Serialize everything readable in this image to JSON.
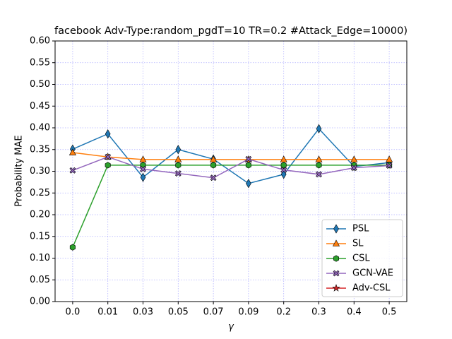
{
  "chart_data": {
    "type": "line",
    "title": "facebook Adv-Type:random_pgdT=10 TR=0.2 #Attack_Edge=10000)",
    "x_label": "γ",
    "y_label": "Probability MAE",
    "categories": [
      "0.0",
      "0.01",
      "0.03",
      "0.05",
      "0.07",
      "0.09",
      "0.2",
      "0.3",
      "0.4",
      "0.5"
    ],
    "series": [
      {
        "name": "PSL",
        "color": "#1f77b4",
        "marker": "thin_diamond",
        "values": [
          0.351,
          0.386,
          0.286,
          0.35,
          0.328,
          0.272,
          0.293,
          0.398,
          0.311,
          0.32
        ]
      },
      {
        "name": "SL",
        "color": "#ff7f0e",
        "marker": "triangle",
        "values": [
          0.343,
          0.333,
          0.327,
          0.327,
          0.327,
          0.327,
          0.327,
          0.327,
          0.327,
          0.327
        ]
      },
      {
        "name": "CSL",
        "color": "#2ca02c",
        "marker": "hexagon",
        "values": [
          0.125,
          0.314,
          0.314,
          0.314,
          0.314,
          0.314,
          0.314,
          0.314,
          0.314,
          0.314
        ]
      },
      {
        "name": "GCN-VAE",
        "color": "#9467bd",
        "marker": "x",
        "values": [
          0.302,
          0.333,
          0.305,
          0.295,
          0.285,
          0.328,
          0.303,
          0.293,
          0.308,
          0.313
        ]
      },
      {
        "name": "Adv-CSL",
        "color": "#d62728",
        "marker": "star",
        "values": [
          null,
          null,
          null,
          null,
          null,
          null,
          null,
          null,
          null,
          null
        ]
      }
    ],
    "ylim": [
      0,
      0.6
    ],
    "yticks": [
      {
        "value": 0,
        "label": "0.00"
      },
      {
        "value": 0.05,
        "label": "0.05"
      },
      {
        "value": 0.1,
        "label": "0.10"
      },
      {
        "value": 0.15,
        "label": "0.15"
      },
      {
        "value": 0.2,
        "label": "0.20"
      },
      {
        "value": 0.25,
        "label": "0.25"
      },
      {
        "value": 0.3,
        "label": "0.30"
      },
      {
        "value": 0.35,
        "label": "0.35"
      },
      {
        "value": 0.4,
        "label": "0.40"
      },
      {
        "value": 0.45,
        "label": "0.45"
      },
      {
        "value": 0.5,
        "label": "0.50"
      },
      {
        "value": 0.55,
        "label": "0.55"
      },
      {
        "value": 0.6,
        "label": "0.60"
      }
    ],
    "grid": true,
    "grid_color": "#0000ff",
    "legend": "lower right"
  }
}
